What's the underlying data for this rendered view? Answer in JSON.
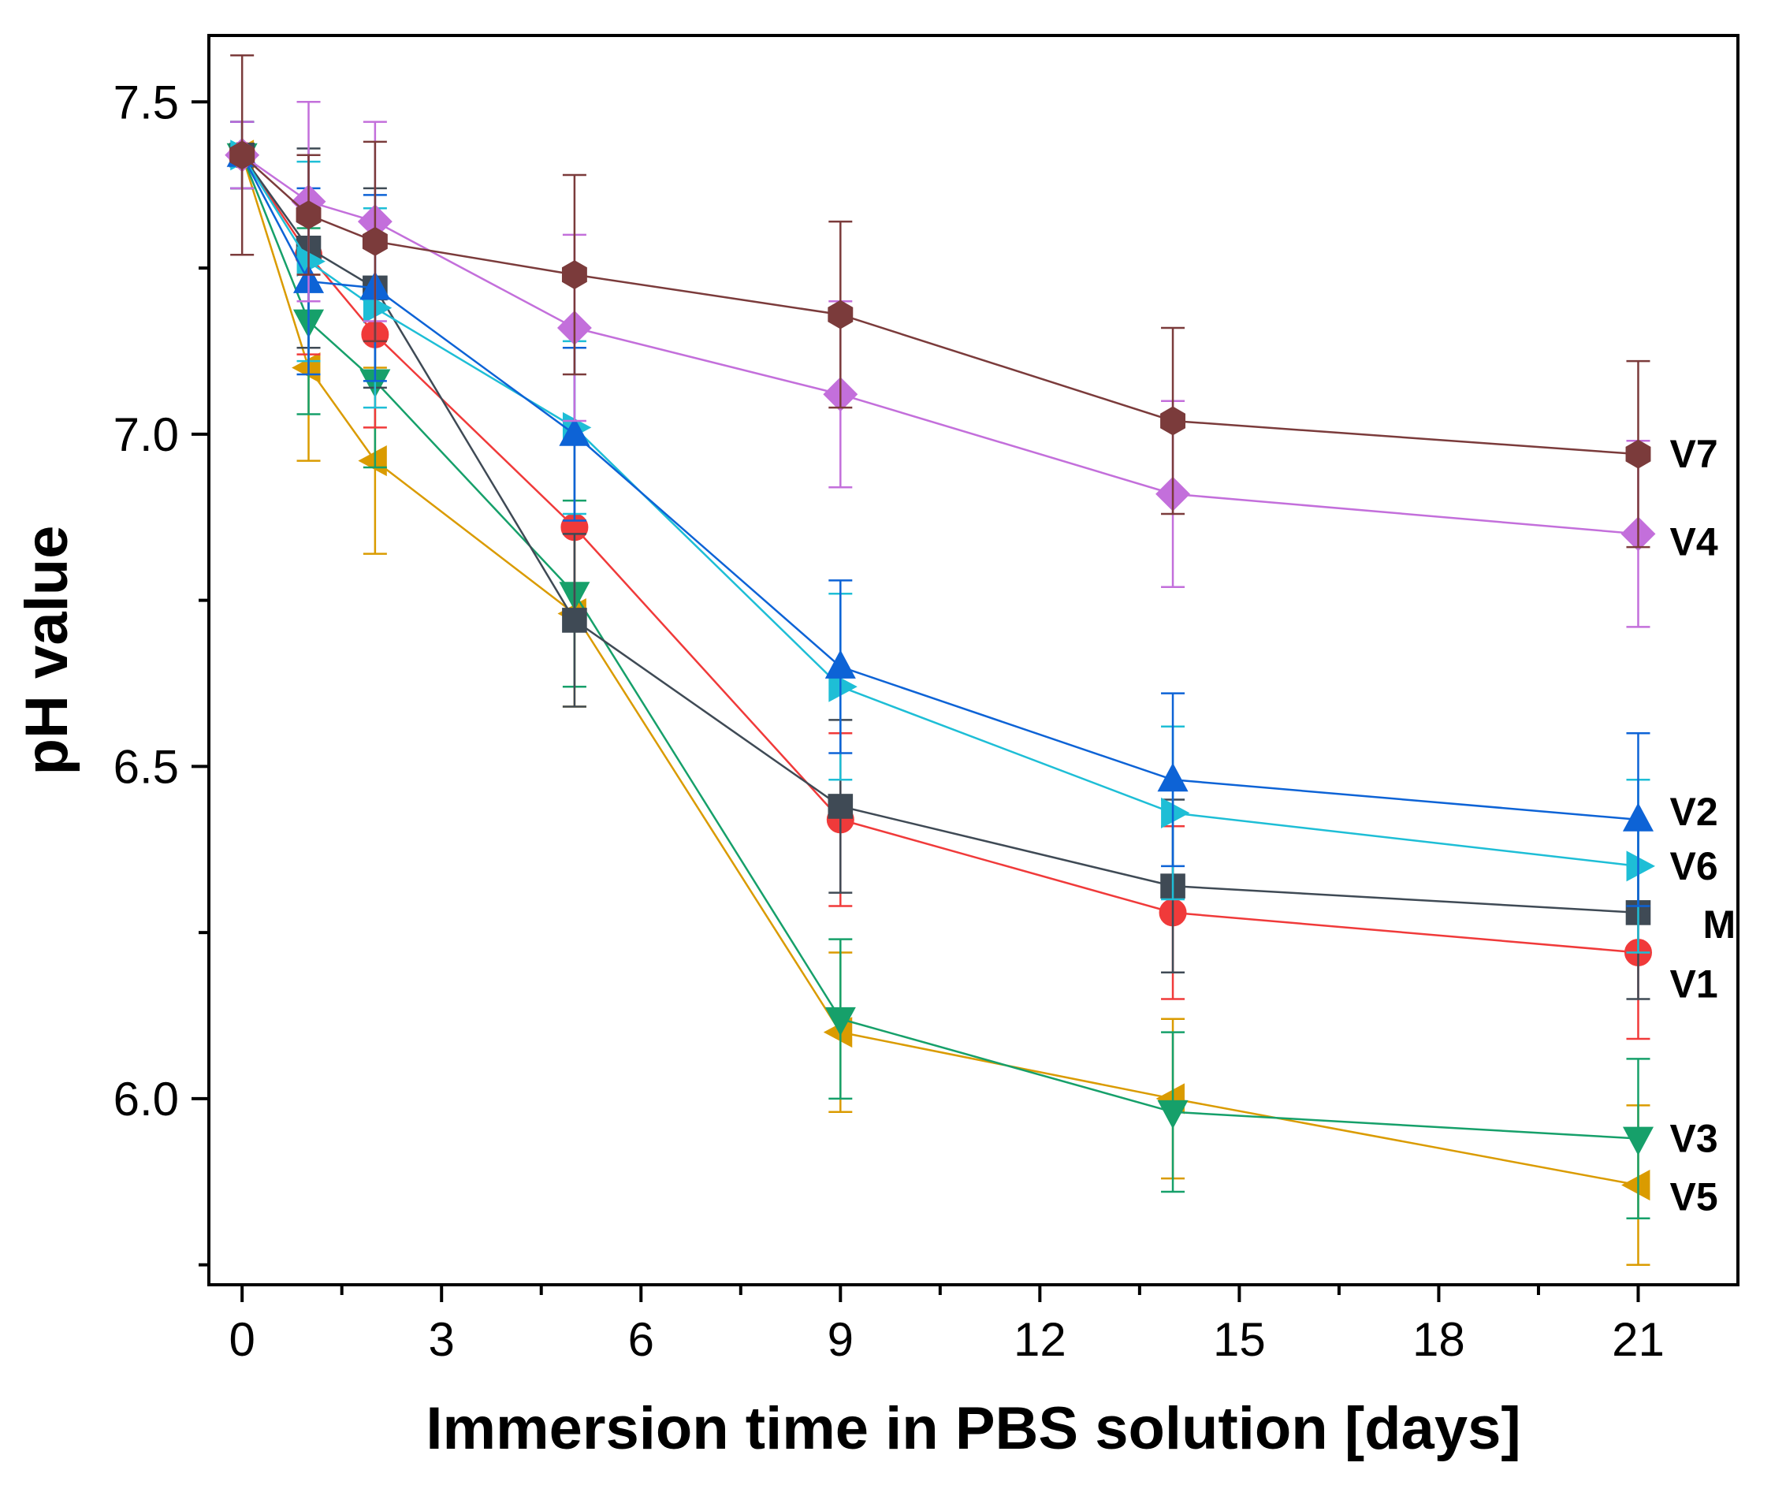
{
  "chart_data": {
    "type": "line",
    "title": "",
    "xlabel": "Immersion time in PBS solution [days]",
    "ylabel": "pH value",
    "xlim": [
      -0.5,
      22.5
    ],
    "ylim": [
      5.72,
      7.6
    ],
    "xticks": [
      0,
      3,
      6,
      9,
      12,
      15,
      18,
      21
    ],
    "yticks": [
      6.0,
      6.5,
      7.0,
      7.5
    ],
    "x": [
      0,
      1,
      2,
      5,
      9,
      14,
      21
    ],
    "grid": false,
    "legend": "inline labels at right end of each series",
    "series": [
      {
        "name": "V7",
        "color": "#7B3B3B",
        "marker": "hexagon",
        "values": [
          7.42,
          7.33,
          7.29,
          7.24,
          7.18,
          7.02,
          6.97
        ],
        "errors": [
          0.15,
          0.09,
          0.15,
          0.15,
          0.14,
          0.14,
          0.14
        ]
      },
      {
        "name": "V4",
        "color": "#C36FDB",
        "marker": "diamond",
        "values": [
          7.42,
          7.35,
          7.32,
          7.16,
          7.06,
          6.91,
          6.85
        ],
        "errors": [
          0.05,
          0.15,
          0.15,
          0.14,
          0.14,
          0.14,
          0.14
        ]
      },
      {
        "name": "V2",
        "color": "#0D63D6",
        "marker": "triangle-up",
        "values": [
          7.42,
          7.23,
          7.22,
          7.0,
          6.65,
          6.48,
          6.42
        ],
        "errors": [
          0.05,
          0.14,
          0.14,
          0.13,
          0.13,
          0.13,
          0.13
        ]
      },
      {
        "name": "V6",
        "color": "#1EBED6",
        "marker": "triangle-right",
        "values": [
          7.42,
          7.26,
          7.19,
          7.01,
          6.62,
          6.43,
          6.35
        ],
        "errors": [
          0.05,
          0.15,
          0.15,
          0.13,
          0.14,
          0.13,
          0.13
        ]
      },
      {
        "name": "M",
        "color": "#3F4A55",
        "marker": "square",
        "values": [
          7.42,
          7.28,
          7.22,
          6.72,
          6.44,
          6.32,
          6.28
        ],
        "errors": [
          0.05,
          0.15,
          0.15,
          0.13,
          0.13,
          0.13,
          0.13
        ]
      },
      {
        "name": "V1",
        "color": "#F03A3A",
        "marker": "circle",
        "values": [
          7.42,
          7.27,
          7.15,
          6.86,
          6.42,
          6.28,
          6.22
        ],
        "errors": [
          0.05,
          0.15,
          0.14,
          0.13,
          0.13,
          0.13,
          0.13
        ]
      },
      {
        "name": "V3",
        "color": "#16A06A",
        "marker": "triangle-down",
        "values": [
          7.42,
          7.17,
          7.08,
          6.76,
          6.12,
          5.98,
          5.94
        ],
        "errors": [
          0.05,
          0.14,
          0.13,
          0.14,
          0.12,
          0.12,
          0.12
        ]
      },
      {
        "name": "V5",
        "color": "#DA9B00",
        "marker": "triangle-left",
        "values": [
          7.42,
          7.1,
          6.96,
          6.73,
          6.1,
          6.0,
          5.87
        ],
        "errors": [
          0.05,
          0.14,
          0.14,
          0.14,
          0.12,
          0.12,
          0.12
        ]
      }
    ]
  }
}
